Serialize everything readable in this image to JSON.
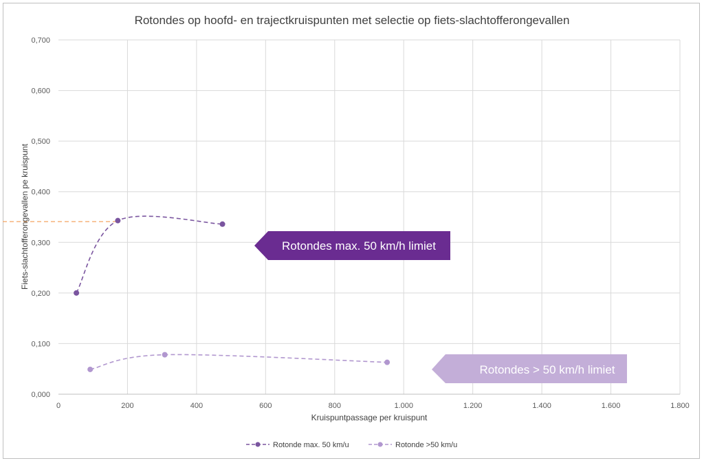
{
  "chart_data": {
    "type": "line",
    "title": "Rotondes op hoofd- en trajectkruispunten met selectie op fiets-slachtofferongevallen",
    "xlabel": "Kruispuntpassage per kruispunt",
    "ylabel": "Fiets-slachtofferongevallen pe kruispunt",
    "xlim": [
      0,
      1800
    ],
    "ylim": [
      0,
      0.7
    ],
    "x_ticks": [
      0,
      200,
      400,
      600,
      800,
      1000,
      1200,
      1400,
      1600,
      1800
    ],
    "x_tick_labels": [
      "0",
      "200",
      "400",
      "600",
      "800",
      "1.000",
      "1.200",
      "1.400",
      "1.600",
      "1.800"
    ],
    "y_ticks": [
      0,
      0.1,
      0.2,
      0.3,
      0.4,
      0.5,
      0.6,
      0.7
    ],
    "y_tick_labels": [
      "0,000",
      "0,100",
      "0,200",
      "0,300",
      "0,400",
      "0,500",
      "0,600",
      "0,700"
    ],
    "grid": true,
    "legend_position": "bottom",
    "series": [
      {
        "name": "Rotonde max. 50 km/u",
        "color": "#7a559f",
        "x": [
          52,
          172,
          475
        ],
        "y": [
          0.2,
          0.343,
          0.336
        ]
      },
      {
        "name": "Rotonde >50 km/u",
        "color": "#b197cf",
        "x": [
          92,
          308,
          952
        ],
        "y": [
          0.049,
          0.078,
          0.063
        ]
      }
    ],
    "reference_line": {
      "y": 0.341,
      "color": "#f4a460"
    },
    "annotations": [
      {
        "text": "Rotondes max. 50 km/h limiet",
        "color": "#6a2c91"
      },
      {
        "text": "Rotondes > 50 km/h limiet",
        "color": "#c3aed8"
      }
    ]
  }
}
